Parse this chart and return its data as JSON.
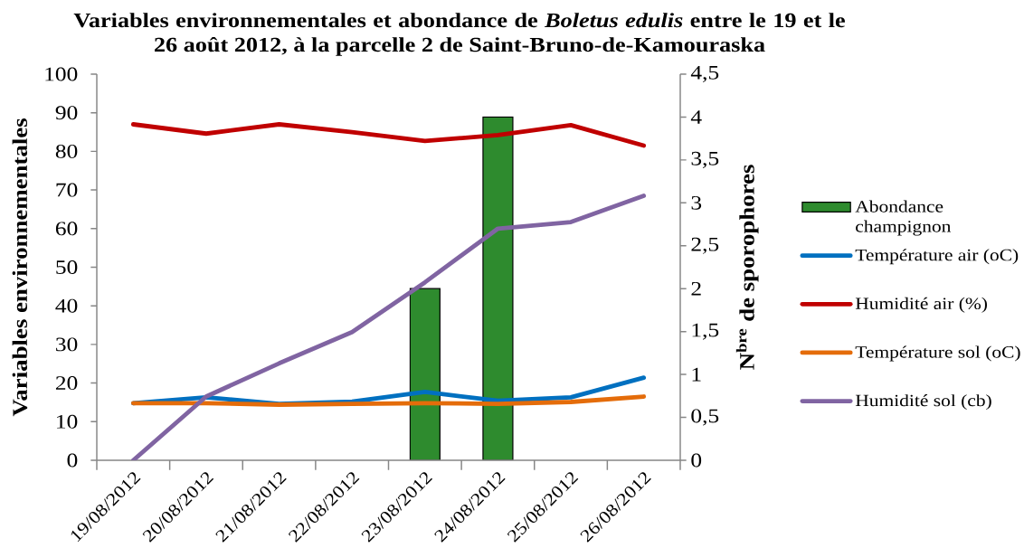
{
  "chart_data": {
    "type": "line",
    "title": "Variables environnementales et abondance de *Boletus edulis* entre le 19 et le 26 août 2012, à la parcelle 2 de Saint-Bruno-de-Kamouraska",
    "ylabel": "Variables environnementales",
    "y2label": "N$^{bre}$ de sporophores",
    "categories": [
      "19/08/2012",
      "20/08/2012",
      "21/08/2012",
      "22/08/2012",
      "23/08/2012",
      "24/08/2012",
      "25/08/2012",
      "26/08/2012"
    ],
    "series": [
      {
        "name": "Abondance champignon",
        "type": "bar",
        "axis": "y2",
        "color": "#2e8b2e",
        "values": [
          null,
          null,
          null,
          null,
          2,
          4,
          null,
          null
        ]
      },
      {
        "name": "Température air (oC)",
        "color": "#0070c0",
        "values": [
          14.8,
          16.3,
          14.6,
          15.2,
          17.7,
          15.4,
          16.3,
          21.4
        ]
      },
      {
        "name": "Humidité air (%)",
        "color": "#c00000",
        "values": [
          87.0,
          84.6,
          87.0,
          85.0,
          82.7,
          84.2,
          86.8,
          81.5
        ]
      },
      {
        "name": "Température sol (oC)",
        "color": "#e46c0a",
        "values": [
          14.8,
          14.8,
          14.4,
          14.6,
          14.8,
          14.6,
          15.1,
          16.5
        ]
      },
      {
        "name": "Humidité sol (cb)",
        "color": "#8064a2",
        "values": [
          0,
          16.5,
          25.1,
          33.2,
          46.1,
          60.0,
          61.7,
          68.5
        ]
      }
    ],
    "ylim": [
      0,
      100
    ],
    "yticks": [
      0,
      10,
      20,
      30,
      40,
      50,
      60,
      70,
      80,
      90,
      100
    ],
    "y2lim": [
      0,
      4.5
    ],
    "y2ticks": [
      0,
      {
        "value": 0.5,
        "label": "0,5"
      },
      1,
      {
        "value": 1.5,
        "label": "1,5"
      },
      2,
      {
        "value": 2.5,
        "label": "2,5"
      },
      3,
      {
        "value": 3.5,
        "label": "3,5"
      },
      4,
      {
        "value": 4.5,
        "label": "4,5"
      }
    ],
    "legend": "right",
    "marker": "none",
    "line_style": "solid"
  }
}
